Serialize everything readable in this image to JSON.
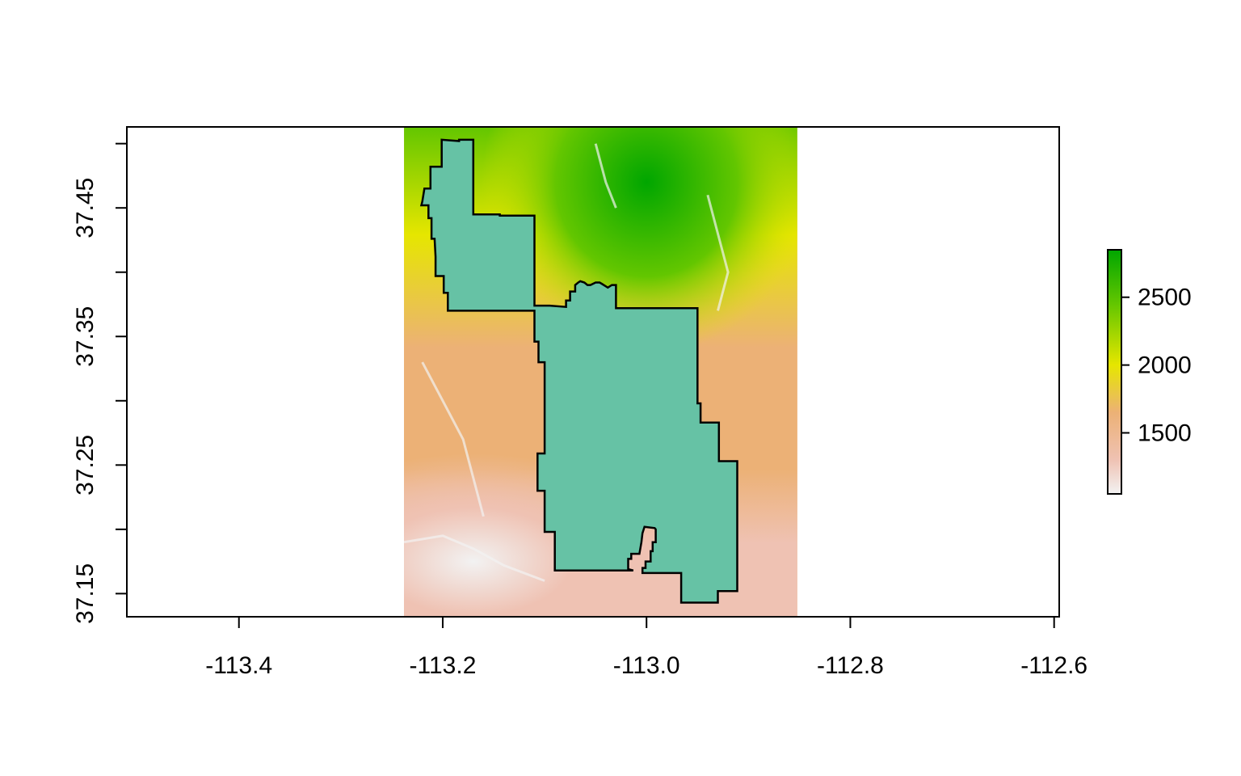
{
  "chart_data": {
    "type": "raster-map",
    "title": "",
    "xlabel": "",
    "ylabel": "",
    "xlim": [
      -113.51,
      -112.595
    ],
    "ylim": [
      37.132,
      37.513
    ],
    "x_ticks": [
      -113.4,
      -113.2,
      -113.0,
      -112.8,
      -112.6
    ],
    "x_tick_labels": [
      "-113.4",
      "-113.2",
      "-113.0",
      "-112.8",
      "-112.6"
    ],
    "y_ticks": [
      37.15,
      37.2,
      37.25,
      37.3,
      37.35,
      37.4,
      37.45,
      37.5
    ],
    "y_tick_labels": [
      "37.15",
      "",
      "37.25",
      "",
      "37.35",
      "",
      "37.45",
      ""
    ],
    "raster_extent": {
      "xmin": -113.238,
      "xmax": -112.852,
      "ymin": 37.132,
      "ymax": 37.513
    },
    "legend": {
      "placement": "right",
      "range": [
        1050,
        2850
      ],
      "ticks": [
        1500,
        2000,
        2500
      ],
      "tick_labels": [
        "1500",
        "2000",
        "2500"
      ],
      "colors": [
        "#F2F2F2",
        "#EFC2B3",
        "#ECB176",
        "#E6E600",
        "#63C600",
        "#00A600"
      ],
      "color_stops": [
        1050,
        1300,
        1650,
        2000,
        2450,
        2850
      ]
    },
    "polygon_fill": "#66C2A5",
    "polygon_stroke": "#000000",
    "park_boundary": [
      [
        -113.201,
        37.503
      ],
      [
        -113.184,
        37.502
      ],
      [
        -113.184,
        37.503
      ],
      [
        -113.17,
        37.503
      ],
      [
        -113.17,
        37.445
      ],
      [
        -113.144,
        37.445
      ],
      [
        -113.144,
        37.444
      ],
      [
        -113.137,
        37.444
      ],
      [
        -113.11,
        37.444
      ],
      [
        -113.11,
        37.374
      ],
      [
        -113.095,
        37.374
      ],
      [
        -113.079,
        37.373
      ],
      [
        -113.079,
        37.378
      ],
      [
        -113.075,
        37.378
      ],
      [
        -113.075,
        37.385
      ],
      [
        -113.07,
        37.385
      ],
      [
        -113.07,
        37.39
      ],
      [
        -113.067,
        37.392
      ],
      [
        -113.065,
        37.393
      ],
      [
        -113.061,
        37.392
      ],
      [
        -113.058,
        37.39
      ],
      [
        -113.055,
        37.39
      ],
      [
        -113.05,
        37.392
      ],
      [
        -113.046,
        37.392
      ],
      [
        -113.044,
        37.391
      ],
      [
        -113.04,
        37.389
      ],
      [
        -113.038,
        37.388
      ],
      [
        -113.034,
        37.39
      ],
      [
        -113.03,
        37.39
      ],
      [
        -113.03,
        37.38
      ],
      [
        -113.03,
        37.372
      ],
      [
        -112.981,
        37.372
      ],
      [
        -112.95,
        37.372
      ],
      [
        -112.95,
        37.298
      ],
      [
        -112.947,
        37.298
      ],
      [
        -112.947,
        37.283
      ],
      [
        -112.929,
        37.283
      ],
      [
        -112.929,
        37.253
      ],
      [
        -112.911,
        37.253
      ],
      [
        -112.911,
        37.152
      ],
      [
        -112.93,
        37.152
      ],
      [
        -112.93,
        37.143
      ],
      [
        -112.966,
        37.143
      ],
      [
        -112.966,
        37.166
      ],
      [
        -113.004,
        37.166
      ],
      [
        -113.004,
        37.17
      ],
      [
        -113.001,
        37.17
      ],
      [
        -113.001,
        37.175
      ],
      [
        -112.996,
        37.175
      ],
      [
        -112.996,
        37.183
      ],
      [
        -112.994,
        37.183
      ],
      [
        -112.994,
        37.19
      ],
      [
        -112.991,
        37.19
      ],
      [
        -112.991,
        37.2
      ],
      [
        -112.992,
        37.201
      ],
      [
        -113.002,
        37.202
      ],
      [
        -113.004,
        37.197
      ],
      [
        -113.005,
        37.19
      ],
      [
        -113.007,
        37.181
      ],
      [
        -113.015,
        37.181
      ],
      [
        -113.015,
        37.177
      ],
      [
        -113.018,
        37.177
      ],
      [
        -113.018,
        37.169
      ],
      [
        -113.013,
        37.168
      ],
      [
        -113.09,
        37.168
      ],
      [
        -113.09,
        37.198
      ],
      [
        -113.1,
        37.198
      ],
      [
        -113.1,
        37.23
      ],
      [
        -113.107,
        37.23
      ],
      [
        -113.107,
        37.259
      ],
      [
        -113.1,
        37.259
      ],
      [
        -113.1,
        37.33
      ],
      [
        -113.106,
        37.33
      ],
      [
        -113.106,
        37.346
      ],
      [
        -113.11,
        37.346
      ],
      [
        -113.11,
        37.37
      ],
      [
        -113.195,
        37.37
      ],
      [
        -113.195,
        37.384
      ],
      [
        -113.199,
        37.384
      ],
      [
        -113.199,
        37.397
      ],
      [
        -113.207,
        37.397
      ],
      [
        -113.207,
        37.412
      ],
      [
        -113.208,
        37.426
      ],
      [
        -113.211,
        37.426
      ],
      [
        -113.211,
        37.442
      ],
      [
        -113.214,
        37.442
      ],
      [
        -113.214,
        37.452
      ],
      [
        -113.221,
        37.452
      ],
      [
        -113.22,
        37.455
      ],
      [
        -113.218,
        37.465
      ],
      [
        -113.212,
        37.465
      ],
      [
        -113.212,
        37.482
      ],
      [
        -113.201,
        37.482
      ],
      [
        -113.201,
        37.503
      ]
    ]
  }
}
